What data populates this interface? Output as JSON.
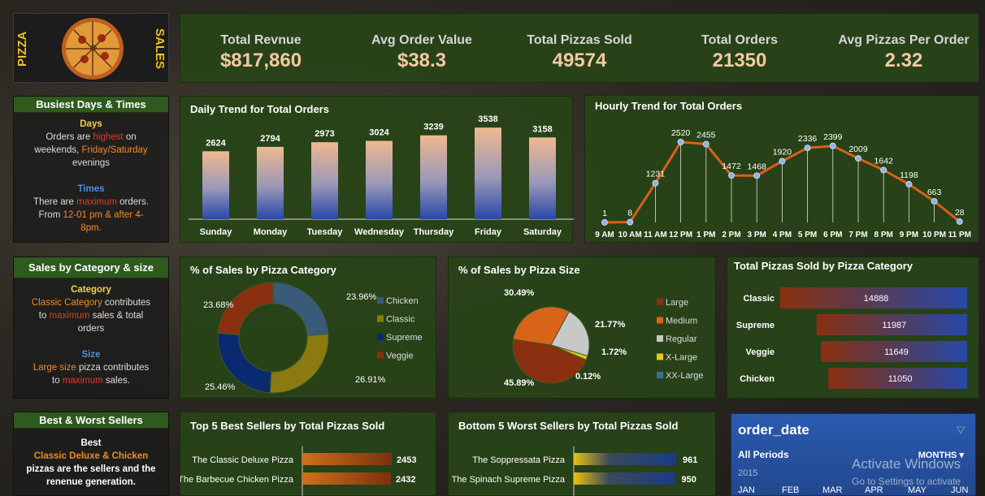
{
  "logo": {
    "left_text": "PIZZA",
    "right_text": "SALES"
  },
  "kpis": [
    {
      "label": "Total Revnue",
      "value": "$817,860"
    },
    {
      "label": "Avg Order Value",
      "value": "$38.3"
    },
    {
      "label": "Total Pizzas Sold",
      "value": "49574"
    },
    {
      "label": "Total Orders",
      "value": "21350"
    },
    {
      "label": "Avg Pizzas Per Order",
      "value": "2.32"
    }
  ],
  "busiest": {
    "title": "Busiest Days & Times",
    "days_head": "Days",
    "days_l1a": "Orders are ",
    "days_l1b": "highest",
    "days_l1c": " on",
    "days_l2a": "weekends, ",
    "days_l2b": "Friday/Saturday",
    "days_l3": "evenings",
    "times_head": "Times",
    "times_l1a": "There are ",
    "times_l1b": "maximum",
    "times_l1c": " orders.",
    "times_l2a": "From ",
    "times_l2b": "12-01 pm & after 4-",
    "times_l3": "8pm."
  },
  "category_size": {
    "title": "Sales by Category & size",
    "cat_head": "Category",
    "cat_l1": "Classic Category",
    "cat_l1b": " contributes",
    "cat_l2a": "to ",
    "cat_l2b": "maximum",
    "cat_l2c": " sales & total",
    "cat_l3": "orders",
    "size_head": "Size",
    "size_l1a": "Large size",
    "size_l1b": " pizza contributes",
    "size_l2a": "to ",
    "size_l2b": "maximum",
    "size_l2c": " sales."
  },
  "sellers": {
    "title": "Best & Worst Sellers",
    "best_head": "Best",
    "best_l1": "Classic Deluxe & Chicken",
    "best_l2": "pizzas are the sellers and the",
    "best_l3": "renenue generation."
  },
  "daily": {
    "title": "Daily Trend for Total Orders"
  },
  "hourly": {
    "title": "Hourly Trend for Total Orders"
  },
  "pct_category": {
    "title": "% of Sales by Pizza Category"
  },
  "pct_size": {
    "title": "% of Sales by Pizza Size"
  },
  "total_cat": {
    "title": "Total Pizzas Sold by Pizza Category"
  },
  "top5": {
    "title": "Top 5 Best Sellers by Total Pizzas Sold"
  },
  "bottom5": {
    "title": "Bottom 5 Worst Sellers by Total Pizzas Sold"
  },
  "slicer": {
    "title": "order_date",
    "period": "All Periods",
    "unit": "MONTHS",
    "year": "2015",
    "months": [
      "JAN",
      "FEB",
      "MAR",
      "APR",
      "MAY",
      "JUN"
    ]
  },
  "watermark": {
    "line1": "Activate Windows",
    "line2": "Go to Settings to activate"
  },
  "chart_data": [
    {
      "type": "bar",
      "id": "daily",
      "categories": [
        "Sunday",
        "Monday",
        "Tuesday",
        "Wednesday",
        "Thursday",
        "Friday",
        "Saturday"
      ],
      "values": [
        2624,
        2794,
        2973,
        3024,
        3239,
        3538,
        3158
      ],
      "ylim": [
        0,
        3700
      ]
    },
    {
      "type": "line",
      "id": "hourly",
      "categories": [
        "9 AM",
        "10 AM",
        "11 AM",
        "12 PM",
        "1 PM",
        "2 PM",
        "3 PM",
        "4 PM",
        "5 PM",
        "6 PM",
        "7 PM",
        "8 PM",
        "9 PM",
        "10 PM",
        "11 PM"
      ],
      "values": [
        1,
        8,
        1231,
        2520,
        2455,
        1472,
        1468,
        1920,
        2336,
        2399,
        2009,
        1642,
        1198,
        663,
        28
      ],
      "ylim": [
        0,
        2800
      ]
    },
    {
      "type": "pie",
      "id": "pct_category",
      "donut": true,
      "labels": [
        "Chicken",
        "Classic",
        "Supreme",
        "Veggie"
      ],
      "values": [
        23.96,
        26.91,
        25.46,
        23.68
      ],
      "value_labels": [
        "23.96%",
        "26.91%",
        "25.46%",
        "23.68%"
      ],
      "colors": [
        "#3a5a7a",
        "#8a7a10",
        "#0a2a70",
        "#8a3010"
      ]
    },
    {
      "type": "pie",
      "id": "pct_size",
      "labels": [
        "Large",
        "Medium",
        "Regular",
        "X-Large",
        "XX-Large"
      ],
      "values": [
        45.89,
        30.49,
        21.77,
        1.72,
        0.12
      ],
      "value_labels": [
        "45.89%",
        "30.49%",
        "21.77%",
        "1.72%",
        "0.12%"
      ],
      "colors": [
        "#8a3010",
        "#d8641a",
        "#c8c8c8",
        "#e8c810",
        "#3a7090"
      ]
    },
    {
      "type": "bar",
      "id": "total_cat",
      "orientation": "horizontal",
      "categories": [
        "Classic",
        "Supreme",
        "Veggie",
        "Chicken"
      ],
      "values": [
        14888,
        11987,
        11649,
        11050
      ]
    },
    {
      "type": "bar",
      "id": "top5",
      "orientation": "horizontal",
      "categories": [
        "The Classic Deluxe Pizza",
        "The Barbecue Chicken Pizza"
      ],
      "values": [
        2453,
        2432
      ]
    },
    {
      "type": "bar",
      "id": "bottom5",
      "orientation": "horizontal",
      "categories": [
        "The Soppressata Pizza",
        "The Spinach Supreme Pizza"
      ],
      "values": [
        961,
        950
      ]
    }
  ]
}
